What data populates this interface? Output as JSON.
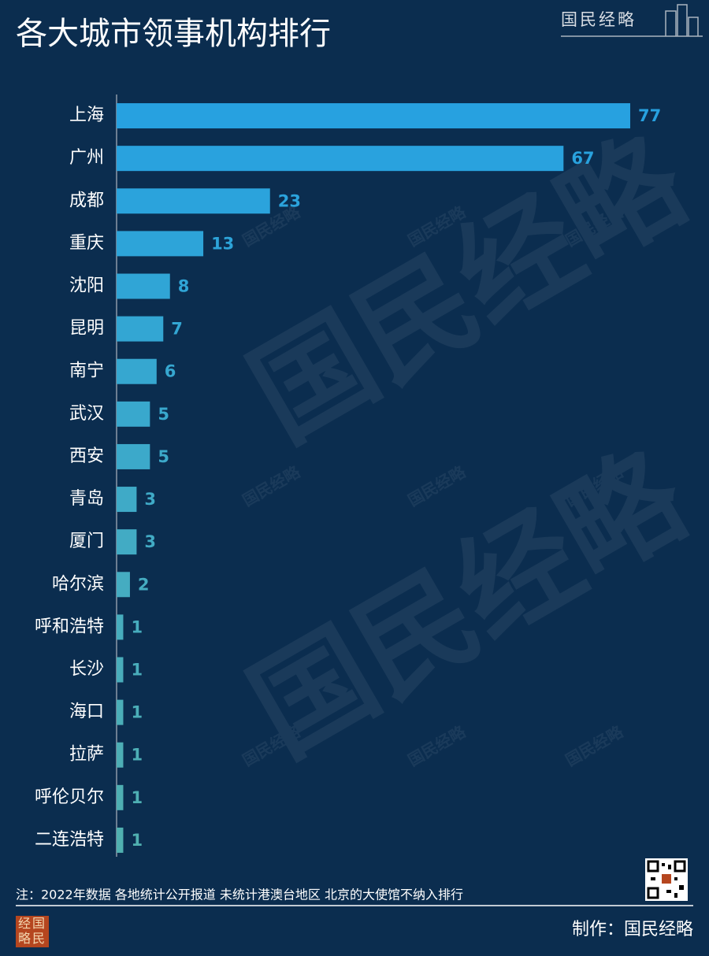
{
  "chart_data": {
    "type": "bar",
    "orientation": "horizontal",
    "title": "各大城市领事机构排行",
    "brand": "国民经略",
    "logo": "经国略民",
    "note": "注：2022年数据 各地统计公开报道 未统计港澳台地区 北京的大使馆不纳入排行",
    "credit": "制作：国民经略",
    "categories": [
      "上海",
      "广州",
      "成都",
      "重庆",
      "沈阳",
      "昆明",
      "南宁",
      "武汉",
      "西安",
      "青岛",
      "厦门",
      "哈尔滨",
      "呼和浩特",
      "长沙",
      "海口",
      "拉萨",
      "呼伦贝尔",
      "二连浩特"
    ],
    "values": [
      77,
      67,
      23,
      13,
      8,
      7,
      6,
      5,
      5,
      3,
      3,
      2,
      1,
      1,
      1,
      1,
      1,
      1
    ],
    "colors": [
      "#27a1e0",
      "#29a2de",
      "#2ba3dc",
      "#2da4d9",
      "#30a5d6",
      "#33a6d3",
      "#36a7d0",
      "#39a8cd",
      "#3ca9ca",
      "#3faac7",
      "#42abc4",
      "#45acc1",
      "#47adbe",
      "#49adbb",
      "#4baeb8",
      "#4daeb5",
      "#4eafb3",
      "#50b0b0"
    ],
    "xlim": [
      0,
      77
    ]
  }
}
